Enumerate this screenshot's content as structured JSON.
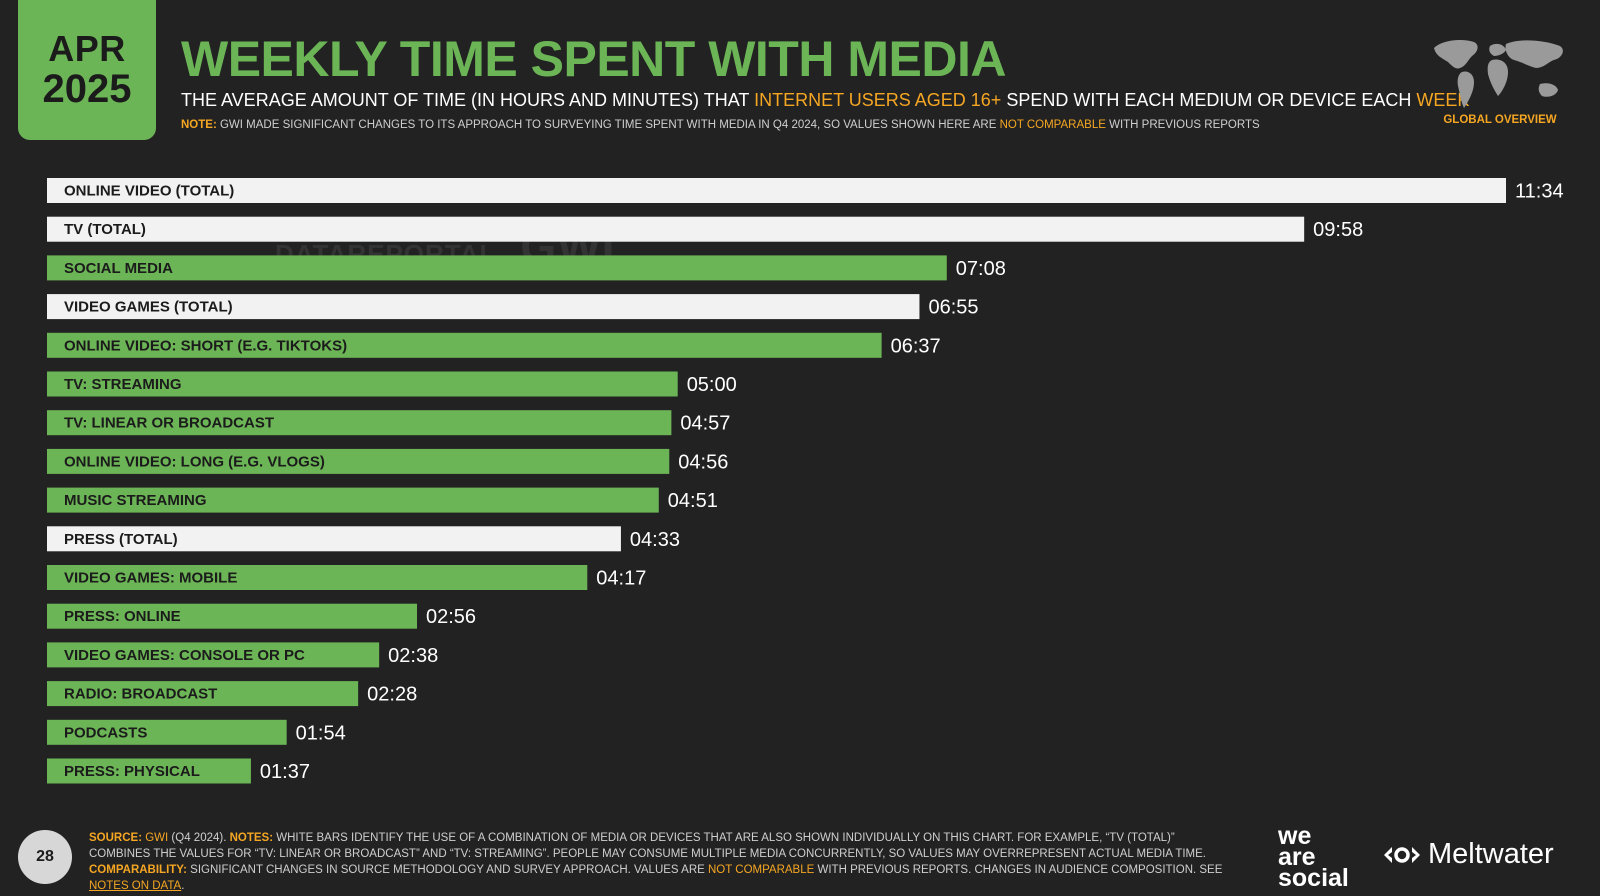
{
  "header": {
    "month": "APR",
    "year": "2025",
    "title": "WEEKLY TIME SPENT WITH MEDIA",
    "subtitle_pre": "THE AVERAGE AMOUNT OF TIME (IN HOURS AND MINUTES) THAT ",
    "subtitle_hl1": "INTERNET USERS AGED 16+",
    "subtitle_mid": " SPEND WITH EACH MEDIUM OR DEVICE EACH ",
    "subtitle_hl2": "WEEK",
    "note_label": "NOTE:",
    "note_pre": " GWI MADE SIGNIFICANT CHANGES TO ITS APPROACH TO SURVEYING TIME SPENT WITH MEDIA IN Q4 2024, SO VALUES SHOWN HERE ARE ",
    "note_hl": "NOT COMPARABLE",
    "note_post": " WITH PREVIOUS REPORTS",
    "global_label": "GLOBAL OVERVIEW"
  },
  "watermark": {
    "left": "DATAREPORTAL",
    "right": "GWI."
  },
  "colors": {
    "accent": "#6cb556",
    "highlight": "#f5a623",
    "total_bar": "#f2f2f2",
    "background": "#222222"
  },
  "chart_data": {
    "type": "bar",
    "orientation": "horizontal",
    "unit": "hours:minutes per week",
    "categories": [
      "ONLINE VIDEO (TOTAL)",
      "TV (TOTAL)",
      "SOCIAL MEDIA",
      "VIDEO GAMES (TOTAL)",
      "ONLINE VIDEO: SHORT (E.G. TIKTOKS)",
      "TV: STREAMING",
      "TV: LINEAR OR BROADCAST",
      "ONLINE VIDEO: LONG (E.G. VLOGS)",
      "MUSIC STREAMING",
      "PRESS (TOTAL)",
      "VIDEO GAMES: MOBILE",
      "PRESS: ONLINE",
      "VIDEO GAMES: CONSOLE OR PC",
      "RADIO: BROADCAST",
      "PODCASTS",
      "PRESS: PHYSICAL"
    ],
    "value_labels": [
      "11:34",
      "09:58",
      "07:08",
      "06:55",
      "06:37",
      "05:00",
      "04:57",
      "04:56",
      "04:51",
      "04:33",
      "04:17",
      "02:56",
      "02:38",
      "02:28",
      "01:54",
      "01:37"
    ],
    "values_minutes": [
      694,
      598,
      428,
      415,
      397,
      300,
      297,
      296,
      291,
      273,
      257,
      176,
      158,
      148,
      114,
      97
    ],
    "is_total": [
      true,
      true,
      false,
      true,
      false,
      false,
      false,
      false,
      false,
      true,
      false,
      false,
      false,
      false,
      false,
      false
    ]
  },
  "footer": {
    "page": "28",
    "source_label": "SOURCE:",
    "source_gwi": "GWI",
    "source_rest": " (Q4 2024). ",
    "notes_label": "NOTES:",
    "notes_text": " WHITE BARS IDENTIFY THE USE OF A COMBINATION OF MEDIA OR DEVICES THAT ARE ALSO SHOWN INDIVIDUALLY ON THIS CHART. FOR EXAMPLE, “TV (TOTAL)” COMBINES THE VALUES FOR “TV: LINEAR OR BROADCAST” AND “TV: STREAMING”. PEOPLE MAY CONSUME MULTIPLE MEDIA CONCURRENTLY, SO VALUES MAY OVERREPRESENT ACTUAL MEDIA TIME. ",
    "comparability_label": "COMPARABILITY:",
    "comparability_text": " SIGNIFICANT CHANGES IN SOURCE METHODOLOGY AND SURVEY APPROACH. VALUES ARE ",
    "comparability_hl": "NOT COMPARABLE",
    "comparability_post": " WITH PREVIOUS REPORTS. CHANGES IN AUDIENCE COMPOSITION. SEE ",
    "notes_link": "NOTES ON DATA",
    "end": ".",
    "brand_was": [
      "we",
      "are",
      "social"
    ],
    "brand_mw": "Meltwater"
  }
}
